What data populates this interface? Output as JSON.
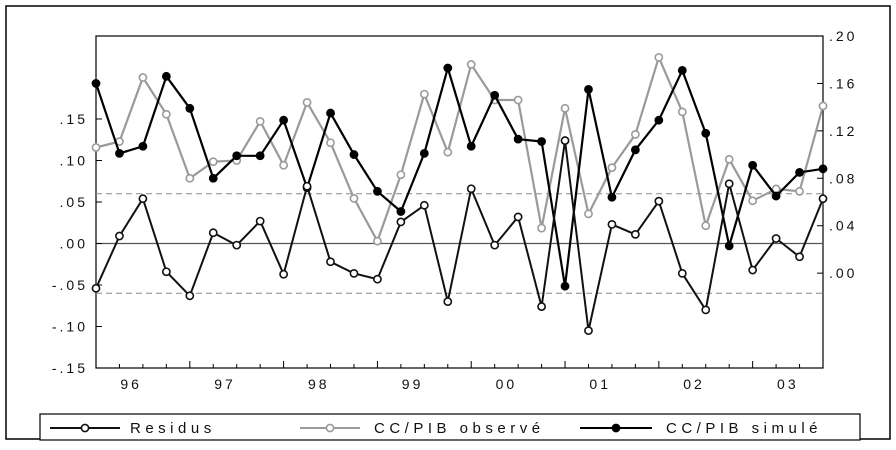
{
  "chart_data": {
    "type": "line",
    "x": [
      "96Q1",
      "96Q2",
      "96Q3",
      "96Q4",
      "97Q1",
      "97Q2",
      "97Q3",
      "97Q4",
      "98Q1",
      "98Q2",
      "98Q3",
      "98Q4",
      "99Q1",
      "99Q2",
      "99Q3",
      "99Q4",
      "00Q1",
      "00Q2",
      "00Q3",
      "00Q4",
      "01Q1",
      "01Q2",
      "01Q3",
      "01Q4",
      "02Q1",
      "02Q2",
      "02Q3",
      "02Q4",
      "03Q1",
      "03Q2",
      "03Q3",
      "03Q4"
    ],
    "x_tick_labels": [
      "96",
      "97",
      "98",
      "99",
      "00",
      "01",
      "02",
      "03"
    ],
    "left_axis": {
      "ylim": [
        -0.15,
        0.25
      ],
      "ticks": [
        "-.15",
        "-.10",
        "-.05",
        ".00",
        ".05",
        ".10",
        ".15"
      ],
      "tick_values": [
        -0.15,
        -0.1,
        -0.05,
        0.0,
        0.05,
        0.1,
        0.15
      ],
      "reference_lines": [
        -0.06,
        0.0,
        0.06
      ]
    },
    "right_axis": {
      "ylim": [
        -0.08,
        0.2
      ],
      "ticks": [
        ".00",
        ".04",
        ".08",
        ".12",
        ".16",
        ".20"
      ],
      "tick_values": [
        0.0,
        0.04,
        0.08,
        0.12,
        0.16,
        0.2
      ]
    },
    "grid": false,
    "legend_position": "bottom",
    "series": [
      {
        "name": "Residus",
        "axis": "left",
        "color": "#111111",
        "marker": "open-circle",
        "values": [
          -0.054,
          0.009,
          0.054,
          -0.034,
          -0.063,
          0.013,
          -0.002,
          0.027,
          -0.037,
          0.069,
          -0.022,
          -0.036,
          -0.043,
          0.026,
          0.046,
          -0.07,
          0.066,
          -0.002,
          0.032,
          -0.076,
          0.124,
          -0.105,
          0.023,
          0.011,
          0.051,
          -0.036,
          -0.08,
          0.072,
          -0.032,
          0.006,
          -0.016,
          0.054
        ]
      },
      {
        "name": "CC/PIB observé",
        "axis": "right",
        "color": "#9a9a9a",
        "marker": "open-circle",
        "values": [
          0.106,
          0.111,
          0.165,
          0.134,
          0.08,
          0.094,
          0.095,
          0.128,
          0.091,
          0.144,
          0.11,
          0.063,
          0.027,
          0.083,
          0.151,
          0.102,
          0.176,
          0.146,
          0.146,
          0.038,
          0.139,
          0.05,
          0.089,
          0.117,
          0.182,
          0.136,
          0.04,
          0.096,
          0.061,
          0.071,
          0.069,
          0.141
        ]
      },
      {
        "name": "CC/PIB simulé",
        "axis": "right",
        "color": "#000000",
        "marker": "filled-circle",
        "values": [
          0.16,
          0.101,
          0.107,
          0.166,
          0.139,
          0.08,
          0.099,
          0.099,
          0.129,
          0.072,
          0.135,
          0.1,
          0.069,
          0.052,
          0.101,
          0.173,
          0.107,
          0.15,
          0.113,
          0.111,
          -0.011,
          0.155,
          0.064,
          0.104,
          0.129,
          0.171,
          0.118,
          0.023,
          0.091,
          0.065,
          0.085,
          0.088
        ]
      }
    ]
  }
}
